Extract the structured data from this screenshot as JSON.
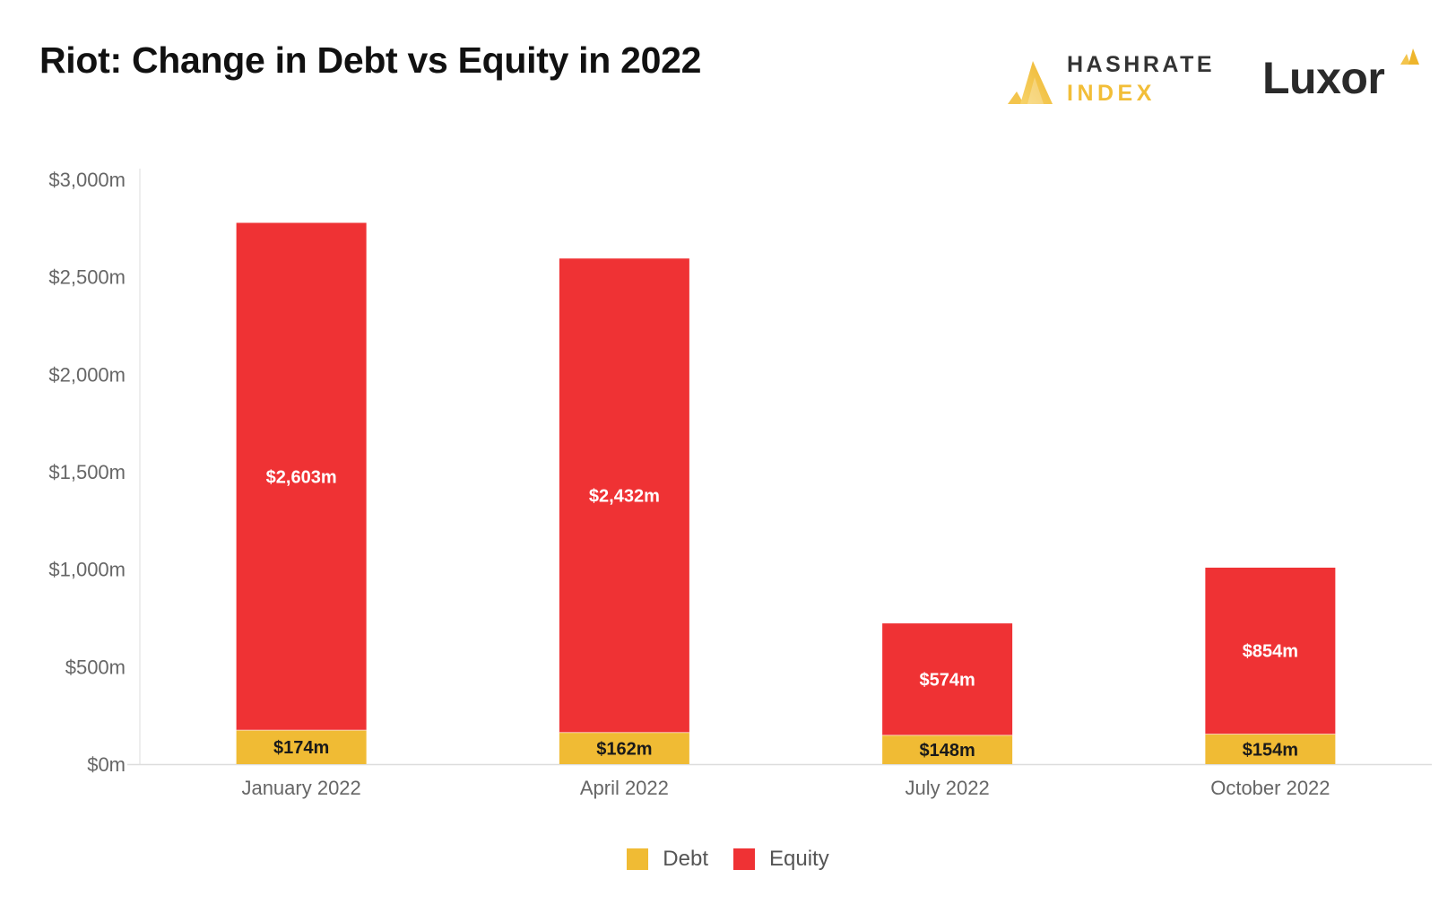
{
  "title": "Riot: Change in Debt vs Equity in 2022",
  "logos": {
    "hashrate_line1": "HASHRATE",
    "hashrate_line2": "INDEX",
    "luxor": "Luxor"
  },
  "colors": {
    "debt": "#f0bb34",
    "equity": "#ef3234",
    "title": "#111111",
    "axis_text": "#666666",
    "gridline": "#dddddd"
  },
  "chart_data": {
    "type": "bar",
    "stacked": true,
    "categories": [
      "January 2022",
      "April 2022",
      "July 2022",
      "October 2022"
    ],
    "series": [
      {
        "name": "Debt",
        "values": [
          174,
          162,
          148,
          154
        ],
        "labels": [
          "$174m",
          "$162m",
          "$148m",
          "$154m"
        ]
      },
      {
        "name": "Equity",
        "values": [
          2603,
          2432,
          574,
          854
        ],
        "labels": [
          "$2,603m",
          "$2,432m",
          "$574m",
          "$854m"
        ]
      }
    ],
    "ylim": [
      0,
      3000
    ],
    "yticks": [
      0,
      500,
      1000,
      1500,
      2000,
      2500,
      3000
    ],
    "ytick_labels": [
      "$0m",
      "$500m",
      "$1,000m",
      "$1,500m",
      "$2,000m",
      "$2,500m",
      "$3,000m"
    ],
    "xlabel": "",
    "ylabel": "",
    "legend_position": "bottom-center",
    "grid": false
  }
}
